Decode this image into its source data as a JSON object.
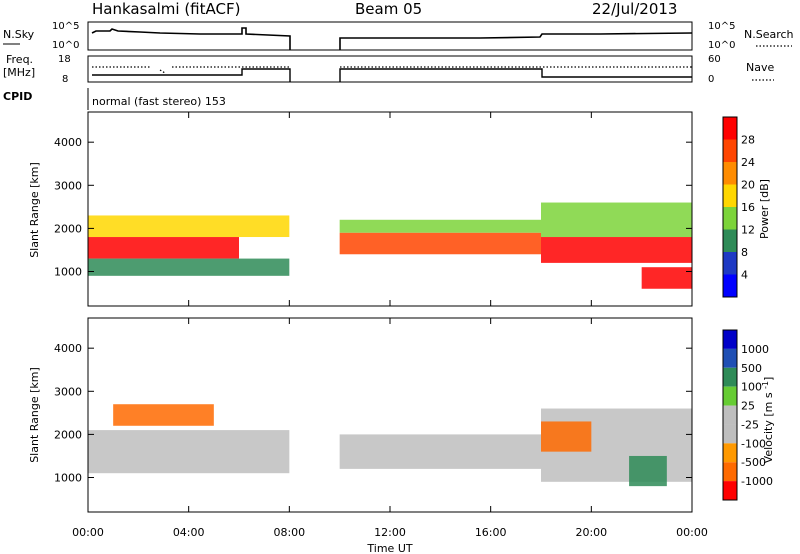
{
  "header": {
    "station": "Hankasalmi (fitACF)",
    "beam": "Beam 05",
    "date": "22/Jul/2013"
  },
  "noise_panel": {
    "left_label": "N.Sky",
    "right_label": "N.Search",
    "left_ticks": [
      "10^5",
      "10^0"
    ],
    "right_ticks": [
      "10^5",
      "10^0"
    ]
  },
  "freq_panel": {
    "left_label_1": "Freq.",
    "left_label_2": "[MHz]",
    "right_label": "Nave",
    "left_ticks": [
      "18",
      "8"
    ],
    "right_ticks": [
      "60",
      "0"
    ]
  },
  "cpid": {
    "label": "CPID",
    "value": "normal (fast stereo) 153"
  },
  "x_axis": {
    "title": "Time UT",
    "ticks": [
      "00:00",
      "04:00",
      "08:00",
      "12:00",
      "16:00",
      "20:00",
      "00:00"
    ]
  },
  "colors": {
    "power": [
      "#0000ff",
      "#1d39c4",
      "#2e8b57",
      "#7cd43a",
      "#ffd700",
      "#ff8c00",
      "#ff4500",
      "#ff0000"
    ],
    "velocity": [
      "#0000c8",
      "#1f4fb4",
      "#2e8b57",
      "#66cc33",
      "#bebebe",
      "#bebebe",
      "#ff9900",
      "#ff6a00",
      "#ff0000"
    ]
  },
  "chart_data": [
    {
      "type": "heatmap",
      "name": "power-panel",
      "ylabel": "Slant Range [km]",
      "yticks": [
        "1000",
        "2000",
        "3000",
        "4000"
      ],
      "ylim": [
        200,
        4700
      ],
      "xlim_hours": [
        0,
        24
      ],
      "data_gap_hours": [
        8,
        10
      ],
      "colorbar": {
        "label": "Power [dB]",
        "ticks": [
          "4",
          "8",
          "12",
          "16",
          "20",
          "24",
          "28"
        ],
        "range": [
          0,
          32
        ]
      },
      "bands": [
        {
          "t0": 0,
          "t1": 6,
          "r0": 1300,
          "r1": 1800,
          "level": 28
        },
        {
          "t0": 0,
          "t1": 8,
          "r0": 1800,
          "r1": 2300,
          "level": 16
        },
        {
          "t0": 0,
          "t1": 8,
          "r0": 900,
          "r1": 1300,
          "level": 8
        },
        {
          "t0": 10,
          "t1": 18,
          "r0": 1400,
          "r1": 1900,
          "level": 24
        },
        {
          "t0": 10,
          "t1": 18,
          "r0": 1900,
          "r1": 2200,
          "level": 12
        },
        {
          "t0": 18,
          "t1": 24,
          "r0": 1200,
          "r1": 1800,
          "level": 28
        },
        {
          "t0": 22,
          "t1": 24,
          "r0": 600,
          "r1": 1100,
          "level": 28
        },
        {
          "t0": 18,
          "t1": 24,
          "r0": 1800,
          "r1": 2600,
          "level": 12
        }
      ]
    },
    {
      "type": "heatmap",
      "name": "velocity-panel",
      "ylabel": "Slant Range [km]",
      "yticks": [
        "1000",
        "2000",
        "3000",
        "4000"
      ],
      "ylim": [
        200,
        4700
      ],
      "xlim_hours": [
        0,
        24
      ],
      "data_gap_hours": [
        8,
        10
      ],
      "colorbar": {
        "label": "Velocity [m s^-1]",
        "ticks": [
          "1000",
          "500",
          "100",
          "25",
          "-25",
          "-100",
          "-500",
          "-1000"
        ]
      },
      "bands": [
        {
          "t0": 0,
          "t1": 8,
          "r0": 1100,
          "r1": 2100,
          "level": 0
        },
        {
          "t0": 1,
          "t1": 5,
          "r0": 2200,
          "r1": 2700,
          "level": -300
        },
        {
          "t0": 10,
          "t1": 18,
          "r0": 1200,
          "r1": 2000,
          "level": 0
        },
        {
          "t0": 18,
          "t1": 24,
          "r0": 900,
          "r1": 2600,
          "level": 0
        },
        {
          "t0": 21.5,
          "t1": 23,
          "r0": 800,
          "r1": 1500,
          "level": 100
        },
        {
          "t0": 18,
          "t1": 20,
          "r0": 1600,
          "r1": 2300,
          "level": -200
        }
      ]
    }
  ]
}
